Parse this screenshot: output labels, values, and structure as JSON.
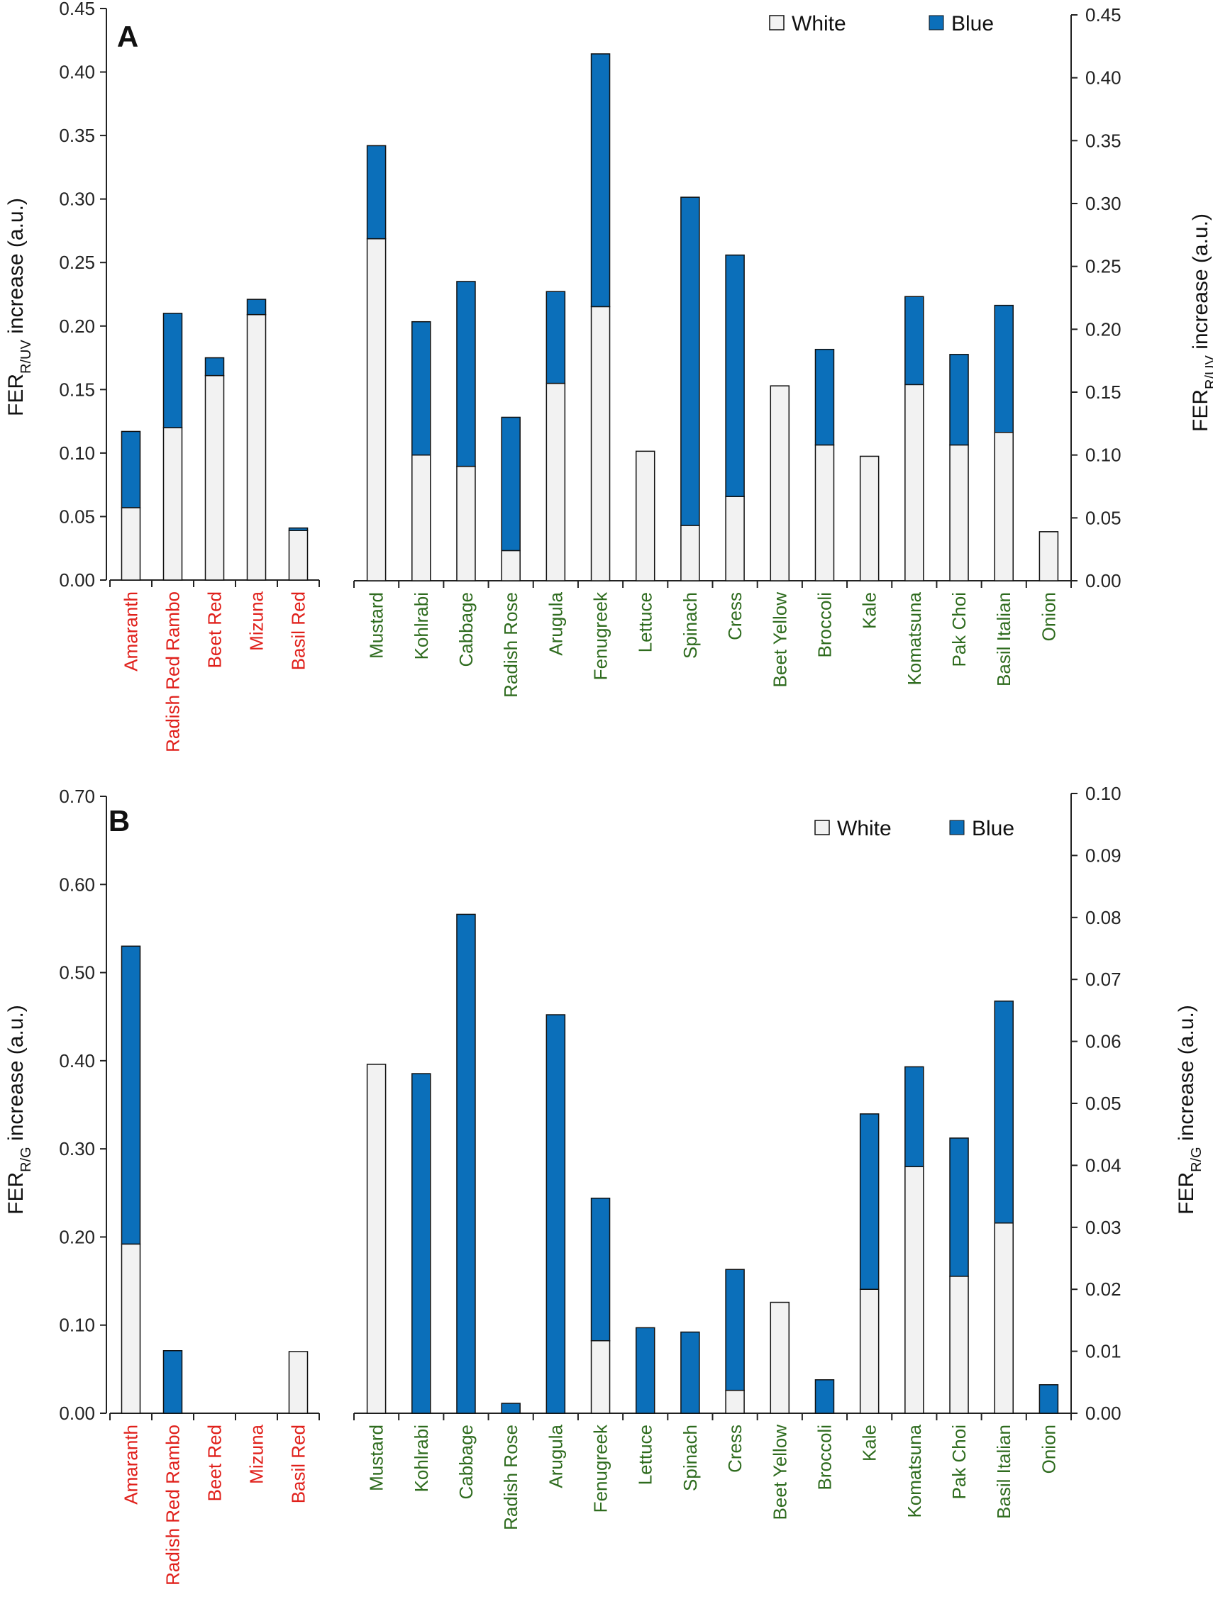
{
  "colors": {
    "white_fill": "#f2f2f2",
    "blue_fill": "#0b6fba",
    "outline": "#111111",
    "red_label": "#e0201b",
    "green_label": "#2e6b1e"
  },
  "chart_data": [
    {
      "panel": "A",
      "type": "bar",
      "stacked": true,
      "legend": [
        "White",
        "Blue"
      ],
      "legend_position": "top-right",
      "left_axis": {
        "title": {
          "main": "FER",
          "sub": "R/UV",
          "rest": " increase (a.u.)"
        },
        "ylim": [
          0,
          0.45
        ],
        "ticks": [
          "0.00",
          "0.05",
          "0.10",
          "0.15",
          "0.20",
          "0.25",
          "0.30",
          "0.35",
          "0.40",
          "0.45"
        ]
      },
      "right_axis": {
        "title": {
          "main": "FER",
          "sub": "R/UV",
          "rest": " increase (a.u.)"
        },
        "ylim": [
          0,
          0.45
        ],
        "ticks": [
          "0.00",
          "0.05",
          "0.10",
          "0.15",
          "0.20",
          "0.25",
          "0.30",
          "0.35",
          "0.40",
          "0.45"
        ]
      },
      "groups": [
        {
          "axis": "left",
          "label_color": "red",
          "categories": [
            "Amaranth",
            "Radish Red Rambo",
            "Beet Red",
            "Mizuna",
            "Basil Red"
          ],
          "series": [
            {
              "name": "White",
              "values": [
                0.057,
                0.12,
                0.161,
                0.209,
                0.039
              ]
            },
            {
              "name": "Blue",
              "values": [
                0.06,
                0.09,
                0.014,
                0.012,
                0.002
              ]
            }
          ]
        },
        {
          "axis": "right",
          "label_color": "green",
          "categories": [
            "Mustard",
            "Kohlrabi",
            "Cabbage",
            "Radish Rose",
            "Arugula",
            "Fenugreek",
            "Lettuce",
            "Spinach",
            "Cress",
            "Beet Yellow",
            "Broccoli",
            "Kale",
            "Komatsuna",
            "Pak Choi",
            "Basil Italian",
            "Onion"
          ],
          "series": [
            {
              "name": "White",
              "values": [
                0.272,
                0.1,
                0.091,
                0.024,
                0.157,
                0.218,
                0.103,
                0.044,
                0.067,
                0.155,
                0.108,
                0.099,
                0.156,
                0.108,
                0.118,
                0.039
              ]
            },
            {
              "name": "Blue",
              "values": [
                0.074,
                0.106,
                0.147,
                0.106,
                0.073,
                0.201,
                0,
                0.261,
                0.192,
                0,
                0.076,
                0,
                0.07,
                0.072,
                0.101,
                0
              ]
            }
          ]
        }
      ]
    },
    {
      "panel": "B",
      "type": "bar",
      "stacked": true,
      "legend": [
        "White",
        "Blue"
      ],
      "legend_position": "top-right",
      "left_axis": {
        "title": {
          "main": "FER",
          "sub": "R/G",
          "rest": " increase (a.u.)"
        },
        "ylim": [
          0,
          0.7
        ],
        "ticks": [
          "0.00",
          "0.10",
          "0.20",
          "0.30",
          "0.40",
          "0.50",
          "0.60",
          "0.70"
        ]
      },
      "right_axis": {
        "title": {
          "main": "FER",
          "sub": "R/G",
          "rest": " increase (a.u.)"
        },
        "ylim": [
          0,
          0.1
        ],
        "ticks": [
          "0.00",
          "0.01",
          "0.02",
          "0.03",
          "0.04",
          "0.05",
          "0.06",
          "0.07",
          "0.08",
          "0.09",
          "0.10"
        ]
      },
      "groups": [
        {
          "axis": "left",
          "label_color": "red",
          "categories": [
            "Amaranth",
            "Radish Red Rambo",
            "Beet Red",
            "Mizuna",
            "Basil Red"
          ],
          "series": [
            {
              "name": "White",
              "values": [
                0.192,
                0,
                0,
                0,
                0.07
              ]
            },
            {
              "name": "Blue",
              "values": [
                0.338,
                0.071,
                0,
                0,
                0
              ]
            }
          ]
        },
        {
          "axis": "right",
          "label_color": "green",
          "categories": [
            "Mustard",
            "Kohlrabi",
            "Cabbage",
            "Radish Rose",
            "Arugula",
            "Fenugreek",
            "Lettuce",
            "Spinach",
            "Cress",
            "Beet Yellow",
            "Broccoli",
            "Kale",
            "Komatsuna",
            "Pak Choi",
            "Basil Italian",
            "Onion"
          ],
          "series": [
            {
              "name": "White",
              "values": [
                0.0563,
                0,
                0,
                0,
                0,
                0.0117,
                0,
                0,
                0.0037,
                0.0179,
                0,
                0.02,
                0.0398,
                0.0221,
                0.0307,
                0
              ]
            },
            {
              "name": "Blue",
              "values": [
                0,
                0.0548,
                0.0805,
                0.0016,
                0.0643,
                0.023,
                0.0138,
                0.0131,
                0.0195,
                0,
                0.0054,
                0.0283,
                0.0161,
                0.0223,
                0.0358,
                0.0046
              ]
            }
          ]
        }
      ]
    }
  ]
}
